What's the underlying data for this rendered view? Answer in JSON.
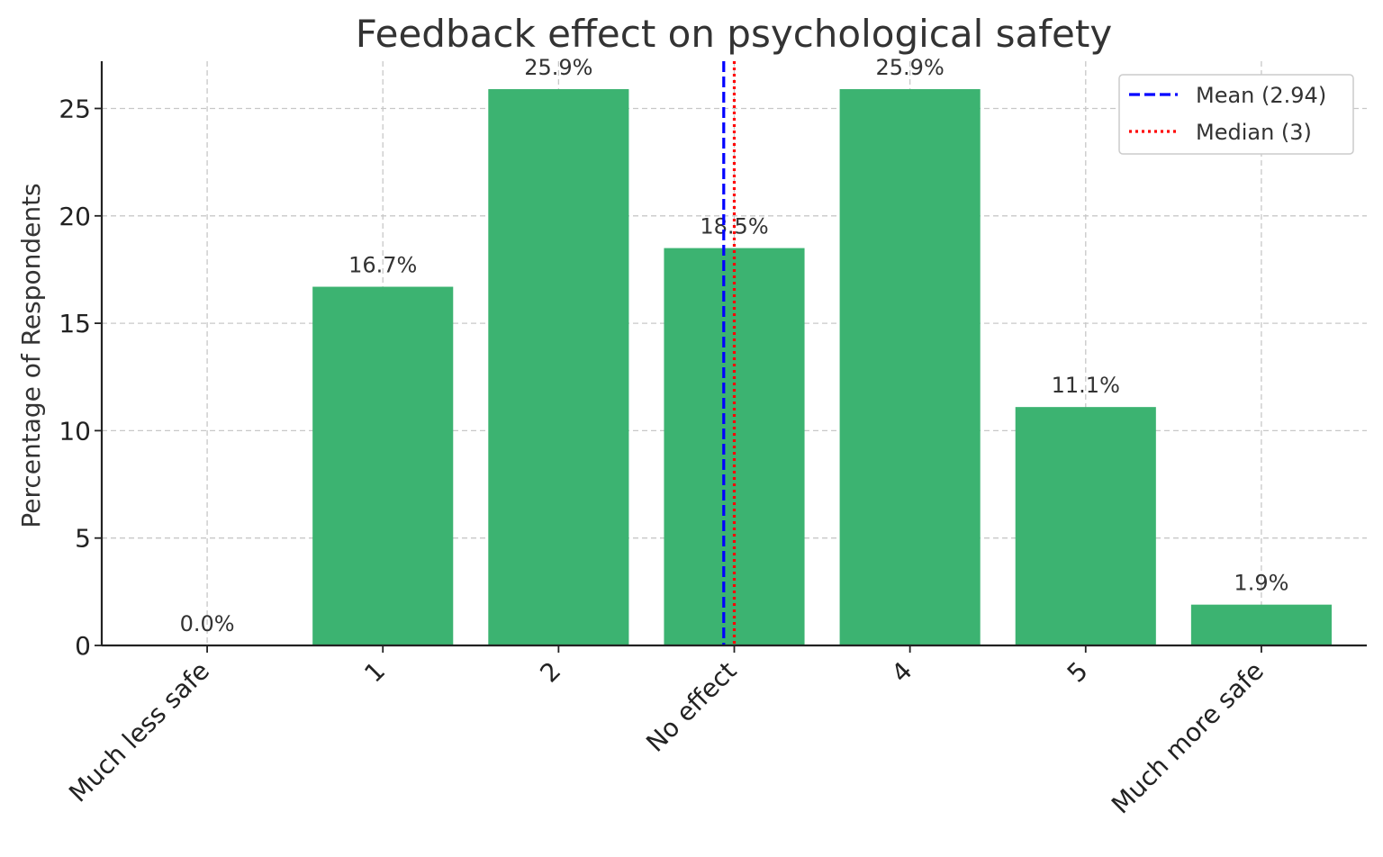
{
  "chart_data": {
    "type": "bar",
    "title": "Feedback effect on psychological safety",
    "xlabel": "",
    "ylabel": "Percentage of Respondents",
    "categories": [
      "Much less safe",
      "1",
      "2",
      "No effect",
      "4",
      "5",
      "Much more safe"
    ],
    "values": [
      0.0,
      16.7,
      25.9,
      18.5,
      25.9,
      11.1,
      1.9
    ],
    "data_labels": [
      "0.0%",
      "16.7%",
      "25.9%",
      "18.5%",
      "25.9%",
      "11.1%",
      "1.9%"
    ],
    "ylim": [
      0,
      27.2
    ],
    "yticks": [
      0,
      5,
      10,
      15,
      20,
      25
    ],
    "grid": true,
    "bar_color": "#3cb371",
    "reference_lines": [
      {
        "name": "Mean (2.94)",
        "value": 2.94,
        "color": "#0000ff",
        "style": "dashed"
      },
      {
        "name": "Median (3)",
        "value": 3,
        "color": "#ff0000",
        "style": "dotted"
      }
    ],
    "legend_position": "top-right"
  }
}
